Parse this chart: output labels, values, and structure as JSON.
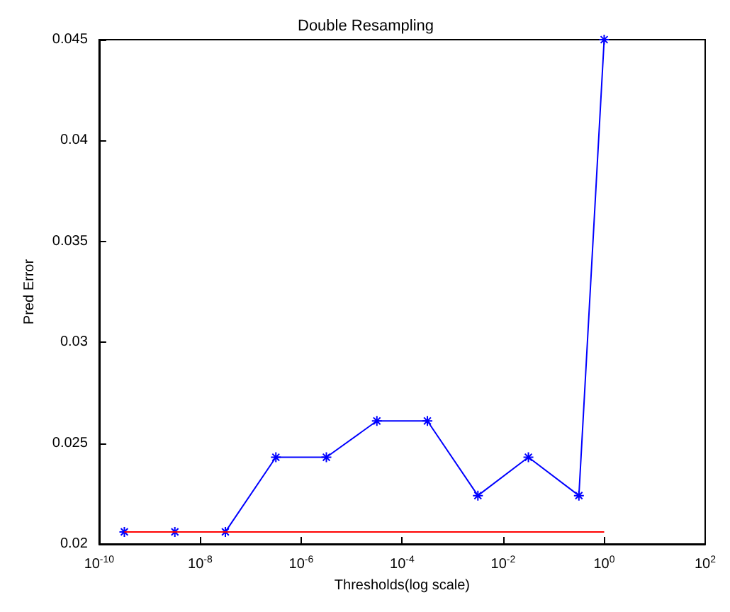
{
  "chart_data": {
    "type": "line",
    "title": "Double Resampling",
    "xlabel": "Thresholds(log scale)",
    "ylabel": "Pred Error",
    "log": "x",
    "grid": false,
    "xlim": [
      1e-10,
      100
    ],
    "xticks": [
      {
        "value": 1e-10,
        "label": "10$^{-10}$"
      },
      {
        "value": 1e-08,
        "label": "10$^{-8}$"
      },
      {
        "value": 1e-06,
        "label": "10$^{-6}$"
      },
      {
        "value": 0.0001,
        "label": "10$^{-4}$"
      },
      {
        "value": 0.01,
        "label": "10$^{-2}$"
      },
      {
        "value": 1,
        "label": "10$^{0}$"
      },
      {
        "value": 100,
        "label": "10$^{2}$"
      }
    ],
    "ylim": [
      0.02,
      0.045
    ],
    "yticks": [
      0.02,
      0.025,
      0.03,
      0.035,
      0.04,
      0.045
    ],
    "series": [
      {
        "color": "#0000ff",
        "marker": "cross",
        "line_style": "solid",
        "x": [
          3.16e-10,
          3.16e-09,
          3.16e-08,
          3.16e-07,
          3.16e-06,
          3.16e-05,
          0.000316,
          0.00316,
          0.0316,
          0.316,
          1
        ],
        "values": [
          0.0206,
          0.0206,
          0.0206,
          0.0243,
          0.0243,
          0.0261,
          0.0261,
          0.0224,
          0.0243,
          0.0224,
          0.045
        ]
      },
      {
        "color": "#ff0000",
        "marker": "none",
        "line_style": "solid",
        "x": [
          3.16e-10,
          1
        ],
        "values": [
          0.0206,
          0.0206
        ]
      }
    ]
  }
}
